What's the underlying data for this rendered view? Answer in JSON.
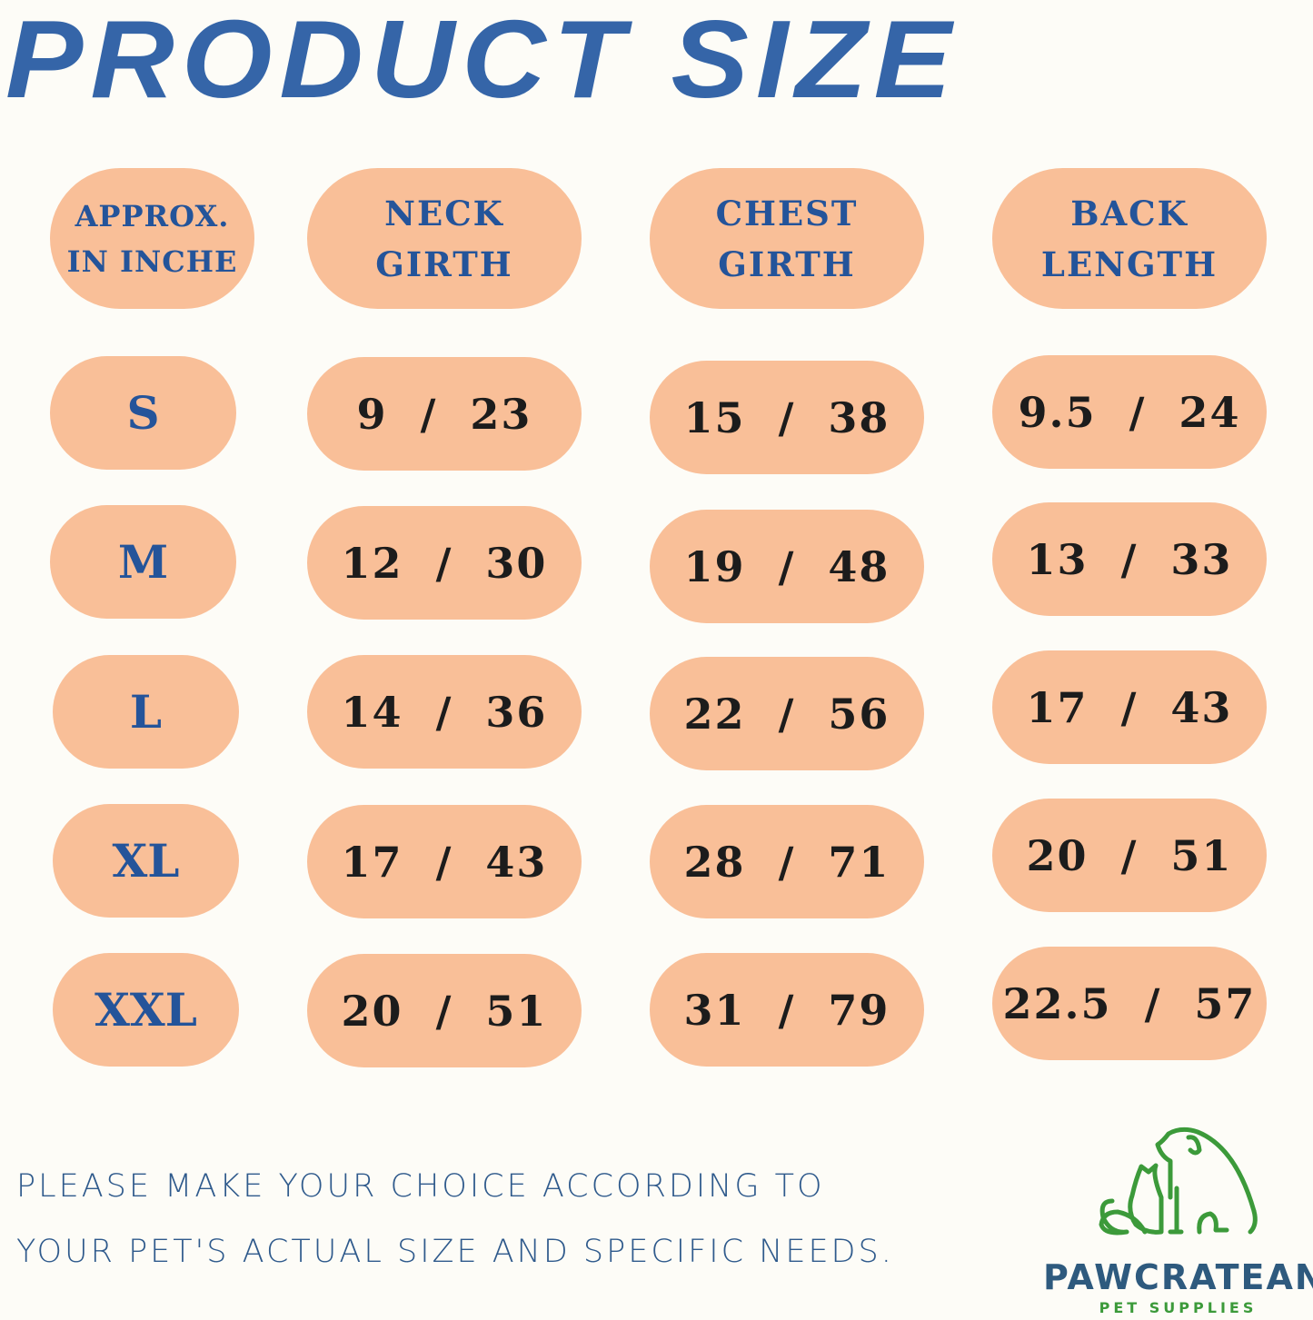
{
  "title": "PRODUCT SIZE",
  "table": {
    "headers": [
      [
        "APPROX.",
        "IN INCHE"
      ],
      [
        "NECK",
        "GIRTH"
      ],
      [
        "CHEST",
        "GIRTH"
      ],
      [
        "BACK",
        "LENGTH"
      ]
    ],
    "rows": [
      {
        "size": "S",
        "neck": "9  /  23",
        "chest": "15  /  38",
        "back": "9.5  /  24"
      },
      {
        "size": "M",
        "neck": "12  /  30",
        "chest": "19  /  48",
        "back": "13  /  33"
      },
      {
        "size": "L",
        "neck": "14  /  36",
        "chest": "22  /  56",
        "back": "17  /  43"
      },
      {
        "size": "XL",
        "neck": "17  /  43",
        "chest": "28  /  71",
        "back": "20  /  51"
      },
      {
        "size": "XXL",
        "neck": "20  /  51",
        "chest": "31  /  79",
        "back": "22.5  /  57"
      }
    ]
  },
  "note": {
    "line1": "PLEASE MAKE YOUR CHOICE ACCORDING TO",
    "line2": "YOUR PET'S ACTUAL SIZE AND SPECIFIC NEEDS."
  },
  "logo": {
    "icon": "dog-and-cat-outline-icon",
    "brand": "PAWCRATEAN",
    "tagline": "PET SUPPLIES"
  },
  "colors": {
    "background": "#fdfcf7",
    "pill": "#f9bf98",
    "title_blue": "#3565a8",
    "label_blue": "#24549a",
    "value_text": "#1c1c1c",
    "logo_green": "#3c9a3a"
  }
}
